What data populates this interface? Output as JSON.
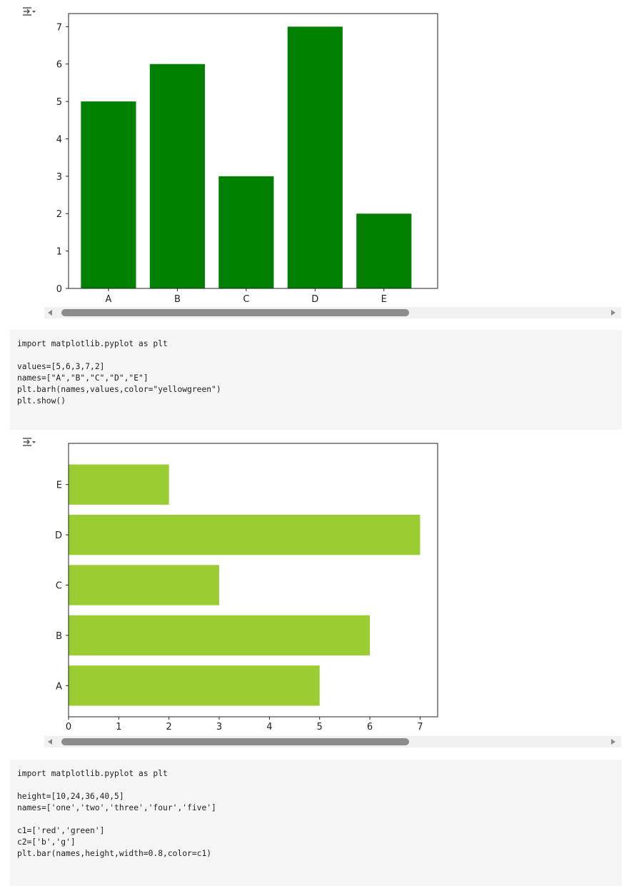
{
  "cells": [
    {
      "output_toggle_icon": "output-collapse-icon",
      "chart_data": {
        "type": "bar",
        "categories": [
          "A",
          "B",
          "C",
          "D",
          "E"
        ],
        "values": [
          5,
          6,
          3,
          7,
          2
        ],
        "color": "#008000",
        "ylim": [
          0,
          7.35
        ],
        "yticks": [
          0,
          1,
          2,
          3,
          4,
          5,
          6,
          7
        ],
        "grid": false
      }
    },
    {
      "code_lines": [
        "import matplotlib.pyplot as plt",
        "",
        "values=[5,6,3,7,2]",
        "names=[\"A\",\"B\",\"C\",\"D\",\"E\"]",
        "plt.barh(names,values,color=\"yellowgreen\")",
        "plt.show()"
      ],
      "output_toggle_icon": "output-collapse-icon",
      "chart_data": {
        "type": "barh",
        "categories": [
          "A",
          "B",
          "C",
          "D",
          "E"
        ],
        "values": [
          5,
          6,
          3,
          7,
          2
        ],
        "color": "#9acd32",
        "xlim": [
          0,
          7.35
        ],
        "xticks": [
          0,
          1,
          2,
          3,
          4,
          5,
          6,
          7
        ],
        "grid": false
      }
    },
    {
      "code_lines": [
        "import matplotlib.pyplot as plt",
        "",
        "height=[10,24,36,40,5]",
        "names=['one','two','three','four','five']",
        "",
        "c1=['red','green']",
        "c2=['b','g']",
        "plt.bar(names,height,width=0.8,color=c1)"
      ]
    }
  ]
}
